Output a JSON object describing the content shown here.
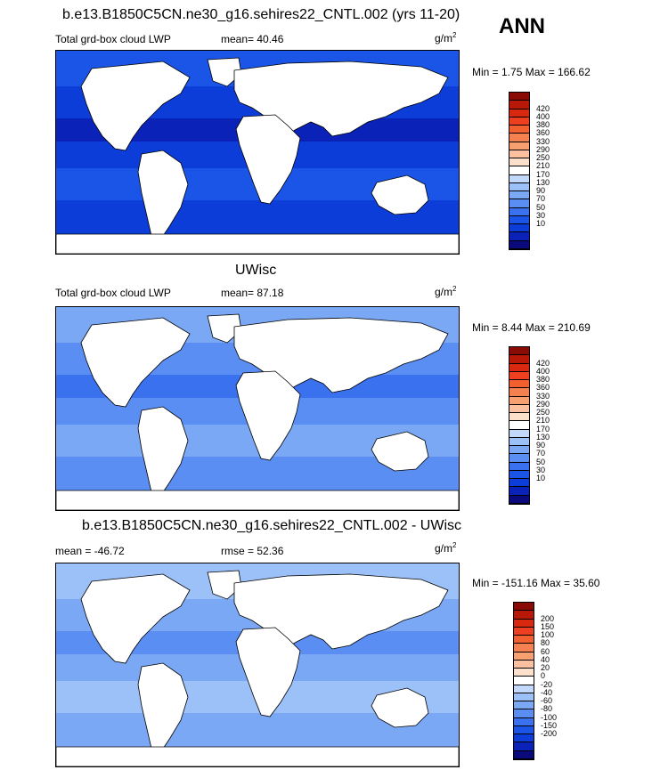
{
  "season": "ANN",
  "panels": [
    {
      "title": "b.e13.B1850C5CN.ne30_g16.sehires22_CNTL.002 (yrs 11-20)",
      "left_label": "Total grd-box cloud LWP",
      "center_label": "mean=  40.46",
      "units_base": "g/m",
      "units_exp": "2",
      "minmax": "Min =   1.75 Max = 166.62",
      "colorbar_colors": [
        "#0a0a7d",
        "#0b22b8",
        "#0d3dd9",
        "#1a55e8",
        "#3a71ee",
        "#5a8ef2",
        "#7aa8f5",
        "#9cc1f8",
        "#c2d9fb",
        "#ffffff",
        "#fde0cc",
        "#fbc0a0",
        "#f8a070",
        "#f58050",
        "#f26030",
        "#ee4020",
        "#d82810",
        "#b81808",
        "#8a0a05"
      ],
      "colorbar_labels": [
        "10",
        "30",
        "50",
        "70",
        "90",
        "130",
        "170",
        "210",
        "250",
        "290",
        "330",
        "360",
        "380",
        "400",
        "420"
      ],
      "ocean_colors": [
        "#0d3dd9",
        "#1a55e8",
        "#0b22b8"
      ]
    },
    {
      "title": "UWisc",
      "left_label": "Total grd-box cloud LWP",
      "center_label": "mean=  87.18",
      "units_base": "g/m",
      "units_exp": "2",
      "minmax": "Min =   8.44 Max = 210.69",
      "colorbar_colors": [
        "#0a0a7d",
        "#0b22b8",
        "#0d3dd9",
        "#1a55e8",
        "#3a71ee",
        "#5a8ef2",
        "#7aa8f5",
        "#9cc1f8",
        "#c2d9fb",
        "#ffffff",
        "#fde0cc",
        "#fbc0a0",
        "#f8a070",
        "#f58050",
        "#f26030",
        "#ee4020",
        "#d82810",
        "#b81808",
        "#8a0a05"
      ],
      "colorbar_labels": [
        "10",
        "30",
        "50",
        "70",
        "90",
        "130",
        "170",
        "210",
        "250",
        "290",
        "330",
        "360",
        "380",
        "400",
        "420"
      ],
      "ocean_colors": [
        "#5a8ef2",
        "#7aa8f5",
        "#3a71ee"
      ]
    },
    {
      "title": "b.e13.B1850C5CN.ne30_g16.sehires22_CNTL.002 - UWisc",
      "left_label": "mean = -46.72",
      "center_label": "rmse =  52.36",
      "units_base": "g/m",
      "units_exp": "2",
      "minmax": "Min = -151.16 Max =  35.60",
      "colorbar_colors": [
        "#0a0a7d",
        "#0b22b8",
        "#0d3dd9",
        "#1a55e8",
        "#3a71ee",
        "#5a8ef2",
        "#7aa8f5",
        "#9cc1f8",
        "#c2d9fb",
        "#ffffff",
        "#fde0cc",
        "#fbc0a0",
        "#f8a070",
        "#f58050",
        "#f26030",
        "#ee4020",
        "#d82810",
        "#b81808",
        "#8a0a05"
      ],
      "colorbar_labels": [
        "-200",
        "-150",
        "-100",
        "-80",
        "-60",
        "-40",
        "-20",
        "0",
        "20",
        "40",
        "60",
        "80",
        "100",
        "150",
        "200"
      ],
      "ocean_colors": [
        "#7aa8f5",
        "#9cc1f8",
        "#5a8ef2"
      ]
    }
  ]
}
